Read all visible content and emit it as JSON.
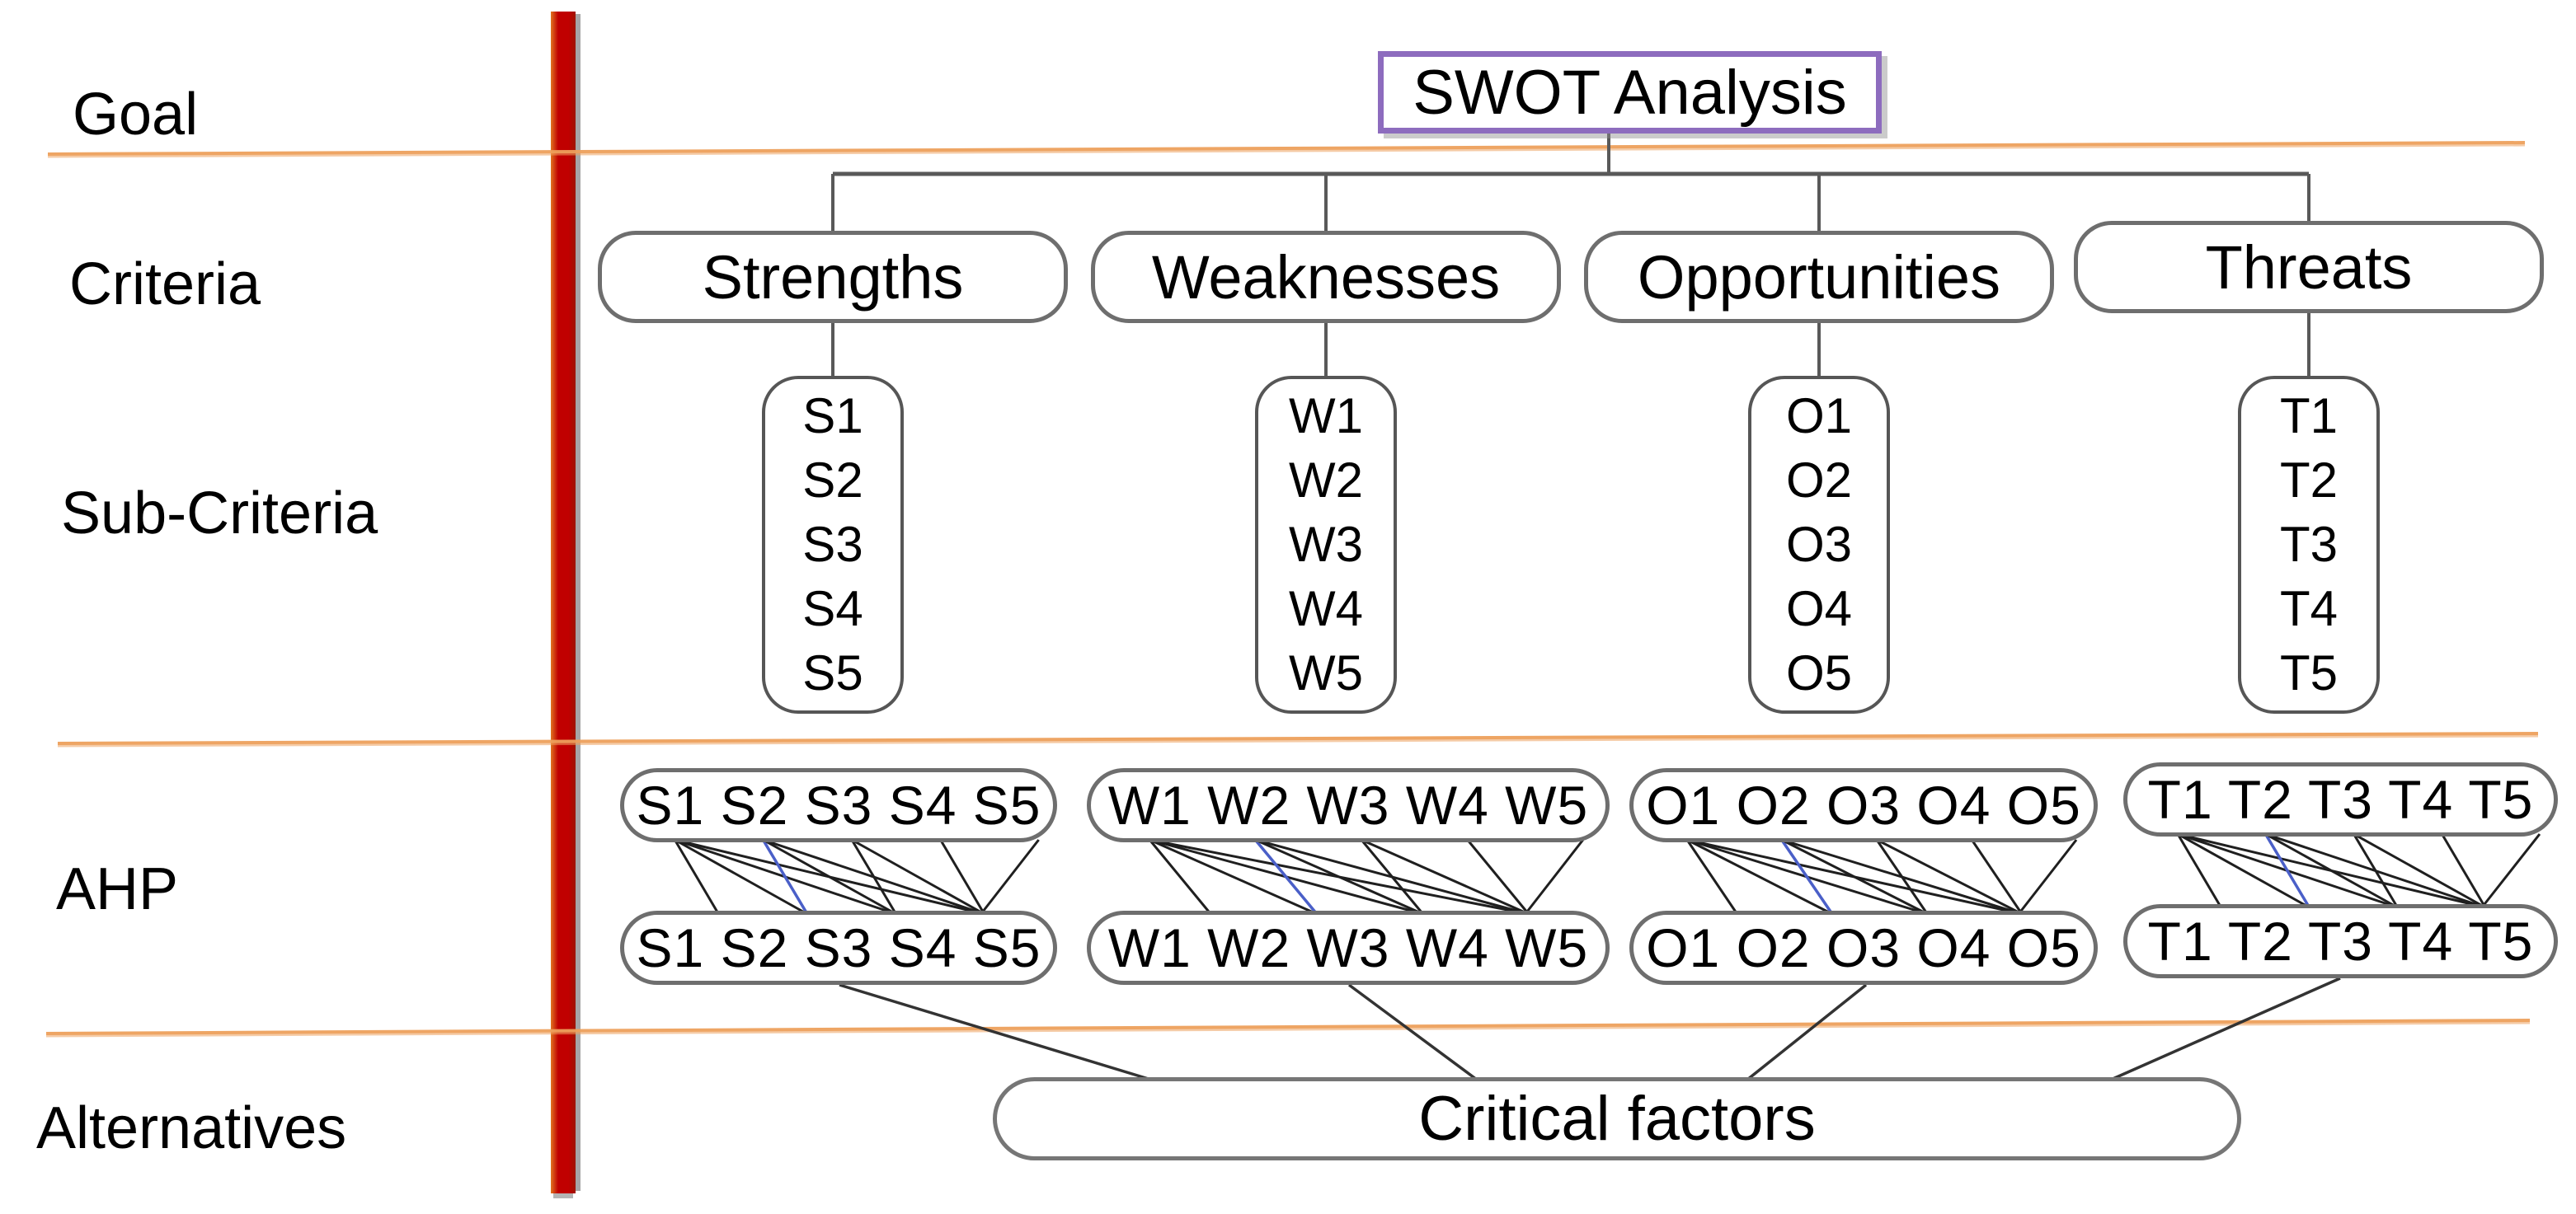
{
  "page": {
    "background": "#FFFFFF"
  },
  "row_labels": [
    {
      "id": "goal",
      "label": "Goal"
    },
    {
      "id": "criteria",
      "label": "Criteria"
    },
    {
      "id": "sub-criteria",
      "label": "Sub-Criteria"
    },
    {
      "id": "ahp",
      "label": "AHP"
    },
    {
      "id": "alternatives",
      "label": "Alternatives"
    }
  ],
  "goal_node": {
    "label": "SWOT Analysis"
  },
  "groups": [
    {
      "criterion": "Strengths",
      "sub_criteria": [
        "S1",
        "S2",
        "S3",
        "S4",
        "S5"
      ]
    },
    {
      "criterion": "Weaknesses",
      "sub_criteria": [
        "W1",
        "W2",
        "W3",
        "W4",
        "W5"
      ]
    },
    {
      "criterion": "Opportunities",
      "sub_criteria": [
        "O1",
        "O2",
        "O3",
        "O4",
        "O5"
      ]
    },
    {
      "criterion": "Threats",
      "sub_criteria": [
        "T1",
        "T2",
        "T3",
        "T4",
        "T5"
      ]
    }
  ],
  "ahp_section": {
    "description": "pairwise-comparison fans between duplicated factor rows",
    "comparison_pairs": [
      [
        1,
        2
      ],
      [
        1,
        3
      ],
      [
        1,
        4
      ],
      [
        1,
        5
      ],
      [
        2,
        3
      ],
      [
        2,
        4
      ],
      [
        2,
        5
      ],
      [
        3,
        4
      ],
      [
        3,
        5
      ],
      [
        4,
        5
      ],
      [
        5,
        5
      ]
    ],
    "highlighted_pair": [
      2,
      3
    ]
  },
  "alternatives_node": {
    "label": "Critical factors"
  },
  "colors": {
    "separator_orange": "#EDA05C",
    "divider_red": "#C00000",
    "divider_edge_orange": "#E0741F",
    "connector_gray": "#595959",
    "node_border_gray": "#6E6E6E",
    "goal_border_purple": "#8D6CBE",
    "comparison_line_black": "#1F1F1F",
    "comparison_line_blue": "#4A5FC8",
    "text": "#000000"
  }
}
